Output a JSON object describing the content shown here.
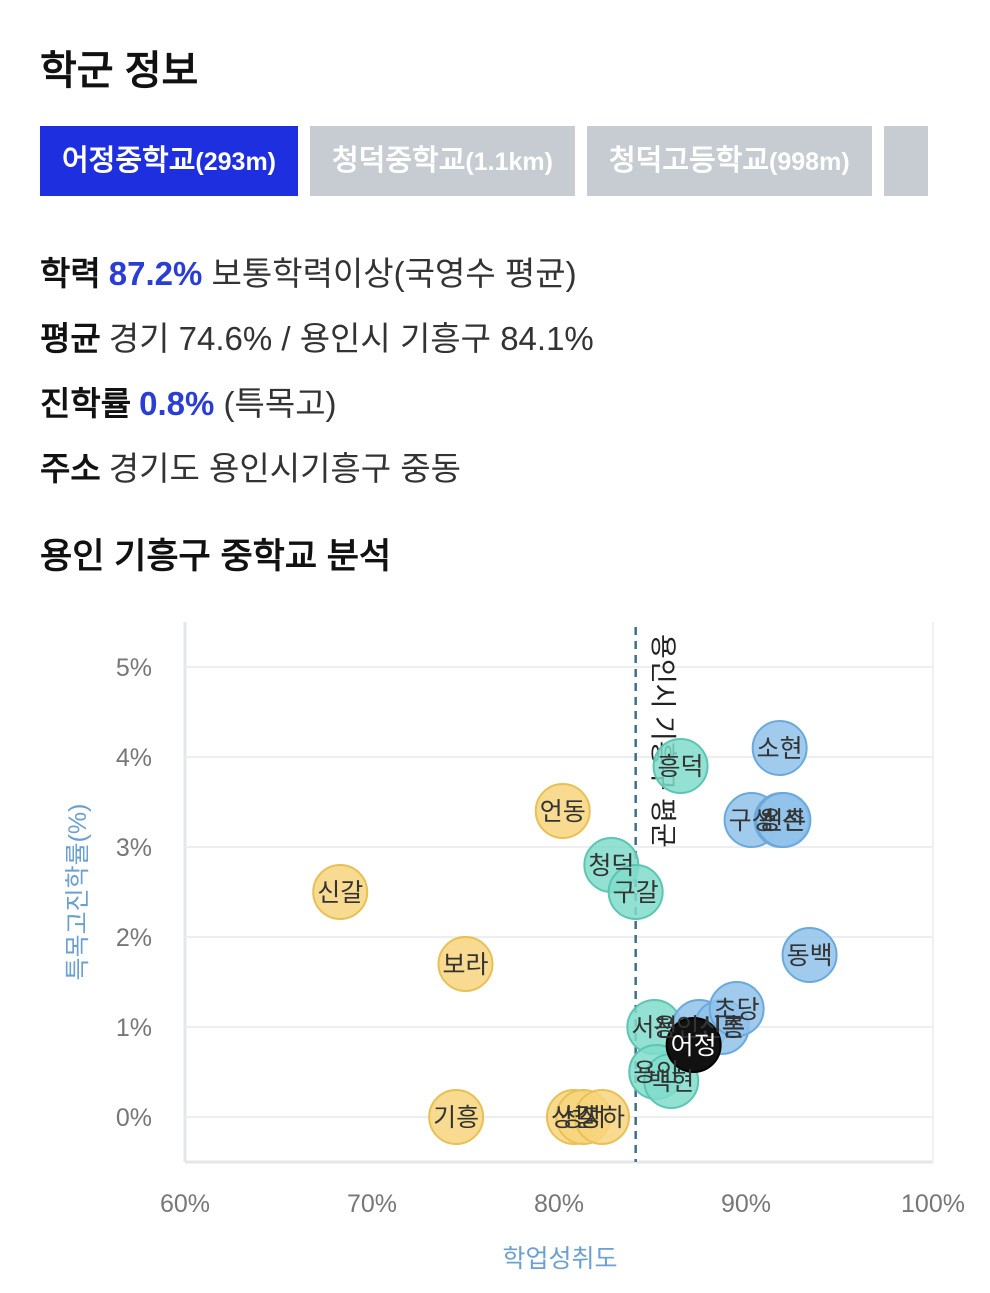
{
  "section_title": "학군 정보",
  "tabs": [
    {
      "name": "어정중학교",
      "distance": "(293m)",
      "active": true
    },
    {
      "name": "청덕중학교",
      "distance": "(1.1km)",
      "active": false
    },
    {
      "name": "청덕고등학교",
      "distance": "(998m)",
      "active": false
    },
    {
      "name": "",
      "distance": "",
      "active": false
    }
  ],
  "info": {
    "achievement": {
      "label": "학력",
      "value": "87.2%",
      "desc": "보통학력이상(국영수 평균)"
    },
    "average": {
      "label": "평균",
      "text": "경기 74.6% / 용인시 기흥구 84.1%"
    },
    "advancement": {
      "label": "진학률",
      "value": "0.8%",
      "desc": "(특목고)"
    },
    "address": {
      "label": "주소",
      "text": "경기도 용인시기흥구 중동"
    }
  },
  "chart_title": "용인 기흥구 중학교 분석",
  "colors": {
    "accent": "#1e2fe0",
    "tab_inactive": "#c7cbd2",
    "yellow": "#f7d57c",
    "teal": "#7fdccb",
    "blue": "#8fc2ea",
    "highlight": "#111111",
    "axis_title": "#6ca0d2"
  },
  "chart_data": {
    "type": "scatter",
    "title": "",
    "xlabel": "학업성취도",
    "ylabel": "특목고진학률(%)",
    "xlim": [
      60,
      100
    ],
    "ylim": [
      -0.5,
      5.5
    ],
    "x_ticks": [
      "60%",
      "70%",
      "80%",
      "90%",
      "100%"
    ],
    "y_ticks": [
      "0%",
      "1%",
      "2%",
      "3%",
      "4%",
      "5%"
    ],
    "grid": true,
    "reference_line": {
      "x": 84.1,
      "label": "용인시 기흥구 평균"
    },
    "points": [
      {
        "name": "신갈",
        "x": 68.3,
        "y": 2.5,
        "group": "yellow"
      },
      {
        "name": "보라",
        "x": 75.0,
        "y": 1.7,
        "group": "yellow"
      },
      {
        "name": "기흥",
        "x": 74.5,
        "y": 0.0,
        "group": "yellow"
      },
      {
        "name": "언동",
        "x": 80.2,
        "y": 3.4,
        "group": "yellow"
      },
      {
        "name": "상갈",
        "x": 80.8,
        "y": 0.0,
        "group": "yellow"
      },
      {
        "name": "성지",
        "x": 81.3,
        "y": 0.0,
        "group": "yellow"
      },
      {
        "name": "상하",
        "x": 82.3,
        "y": 0.0,
        "group": "yellow"
      },
      {
        "name": "청덕",
        "x": 82.8,
        "y": 2.8,
        "group": "teal"
      },
      {
        "name": "구갈",
        "x": 84.1,
        "y": 2.5,
        "group": "teal"
      },
      {
        "name": "흥덕",
        "x": 86.5,
        "y": 3.9,
        "group": "teal"
      },
      {
        "name": "서천",
        "x": 85.1,
        "y": 1.0,
        "group": "teal"
      },
      {
        "name": "용인",
        "x": 85.2,
        "y": 0.5,
        "group": "teal"
      },
      {
        "name": "백현",
        "x": 86.0,
        "y": 0.4,
        "group": "teal"
      },
      {
        "name": "용인신촌",
        "x": 87.5,
        "y": 1.0,
        "group": "blue"
      },
      {
        "name": "신릉",
        "x": 88.7,
        "y": 1.0,
        "group": "blue"
      },
      {
        "name": "초당",
        "x": 89.5,
        "y": 1.2,
        "group": "blue"
      },
      {
        "name": "구성",
        "x": 90.3,
        "y": 3.3,
        "group": "blue"
      },
      {
        "name": "용신",
        "x": 91.9,
        "y": 3.3,
        "group": "blue"
      },
      {
        "name": "신촌",
        "x": 92.0,
        "y": 3.3,
        "group": "blue"
      },
      {
        "name": "소현",
        "x": 91.8,
        "y": 4.1,
        "group": "blue"
      },
      {
        "name": "동백",
        "x": 93.4,
        "y": 1.8,
        "group": "blue"
      },
      {
        "name": "어정",
        "x": 87.2,
        "y": 0.8,
        "group": "highlight"
      }
    ]
  }
}
